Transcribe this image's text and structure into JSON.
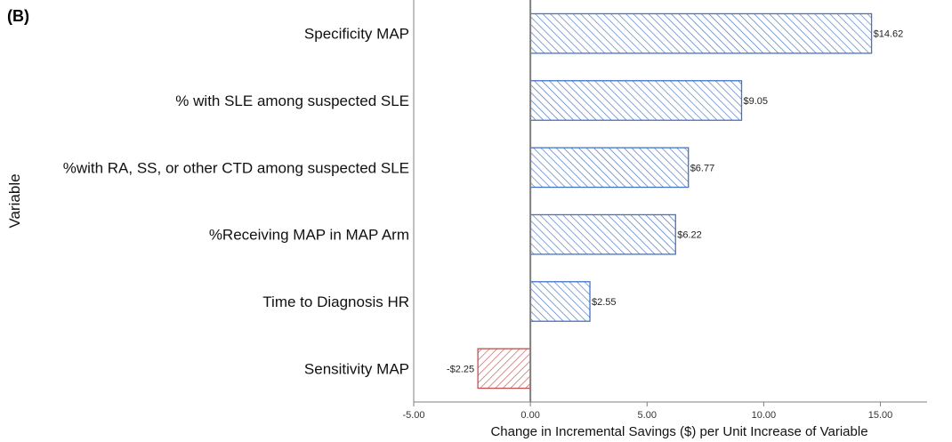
{
  "panel_label": "(B)",
  "colors": {
    "positive": "#4472c4",
    "negative": "#c0504d",
    "axis": "#808080",
    "zero_line": "#7f7f7f"
  },
  "chart_data": {
    "type": "bar",
    "orientation": "horizontal",
    "title": "",
    "xlabel": "Change in Incremental Savings ($) per Unit Increase of Variable",
    "ylabel": "Variable",
    "xlim": [
      -5,
      17
    ],
    "x_ticks": [
      -5,
      0,
      5,
      10,
      15
    ],
    "x_tick_labels": [
      "-5.00",
      "0.00",
      "5.00",
      "10.00",
      "15.00"
    ],
    "grid": false,
    "categories": [
      "Specificity MAP",
      "% with SLE among suspected SLE",
      "%with RA, SS, or other CTD among suspected SLE",
      "%Receiving MAP in MAP Arm",
      "Time to Diagnosis HR",
      "Sensitivity MAP"
    ],
    "values": [
      14.62,
      9.05,
      6.77,
      6.22,
      2.55,
      -2.25
    ],
    "data_labels": [
      "$14.62",
      "$9.05",
      "$6.77",
      "$6.22",
      "$2.55",
      "-$2.25"
    ],
    "fill": "hatched"
  }
}
